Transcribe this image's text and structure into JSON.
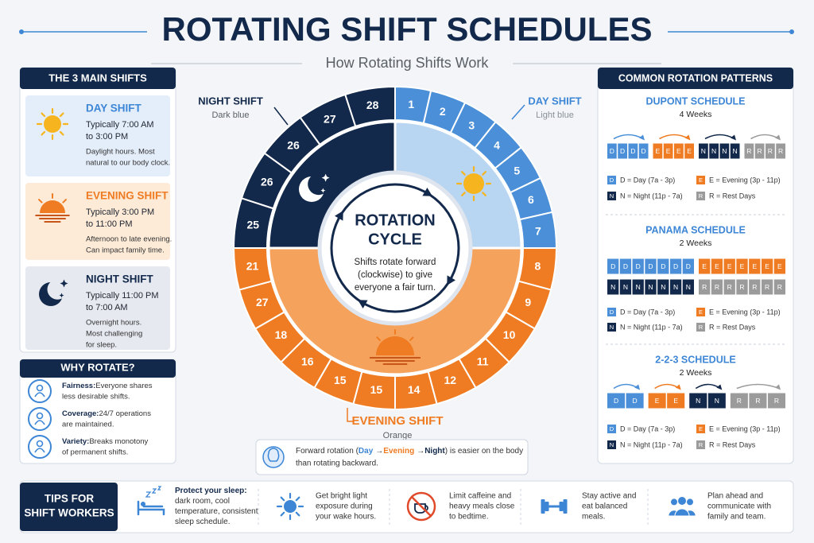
{
  "header": {
    "title": "ROTATING SHIFT SCHEDULES",
    "subtitle": "How Rotating Shifts Work"
  },
  "main_shifts": {
    "title": "THE 3 MAIN SHIFTS",
    "shifts": [
      {
        "name": "DAY SHIFT",
        "time": [
          "Typically 7:00 AM",
          "to 3:00 PM"
        ],
        "description": [
          "Daylight hours. Most",
          "natural to our body clock."
        ]
      },
      {
        "name": "EVENING SHIFT",
        "time": [
          "Typically 3:00 PM",
          "to 11:00 PM"
        ],
        "description": [
          "Afternoon to late evening.",
          "Can impact family time."
        ]
      },
      {
        "name": "NIGHT SHIFT",
        "time": [
          "Typically 11:00 PM",
          "to 7:00 AM"
        ],
        "description": [
          "Overnight hours.",
          "Most challenging",
          "for sleep."
        ]
      }
    ]
  },
  "why_rotate": {
    "title": "WHY ROTATE?",
    "reasons": [
      {
        "label": "Fairness:",
        "lines": [
          "Everyone shares",
          "less desirable shifts."
        ]
      },
      {
        "label": "Coverage:",
        "lines": [
          "24/7 operations",
          "are maintained."
        ]
      },
      {
        "label": "Variety:",
        "lines": [
          "Breaks monotony",
          "of permanent shifts."
        ]
      }
    ]
  },
  "cycle": {
    "day": {
      "label": "DAY SHIFT",
      "color_name": "Light blue",
      "numbers": [
        1,
        2,
        3,
        4,
        5,
        6,
        7
      ]
    },
    "evening": {
      "label": "EVENING SHIFT",
      "color_name": "Orange",
      "numbers": [
        8,
        9,
        10,
        11,
        12,
        14,
        15,
        15,
        16,
        18,
        27,
        21
      ]
    },
    "night": {
      "label": "NIGHT SHIFT",
      "color_name": "Dark blue",
      "numbers": [
        25,
        26,
        26,
        27,
        28
      ]
    },
    "center": {
      "title": [
        "ROTATION",
        "CYCLE"
      ],
      "text": [
        "Shifts rotate forward",
        "(clockwise) to give",
        "everyone a fair turn."
      ]
    }
  },
  "note": {
    "before": "Forward rotation (",
    "day": "Day",
    "arrow": "→",
    "evening": "Evening",
    "night": "Night",
    "after": [
      ") is easier on the body",
      "than rotating backward."
    ]
  },
  "patterns": {
    "title": "COMMON ROTATION PATTERNS",
    "legend": [
      {
        "code": "D",
        "text": "D = Day (7a - 3p)",
        "color": "#4a8fd8"
      },
      {
        "code": "E",
        "text": "E = Evening (3p - 11p)",
        "color": "#ef7b22"
      },
      {
        "code": "N",
        "text": "N = Night (11p - 7a)",
        "color": "#13294b"
      },
      {
        "code": "R",
        "text": "R = Rest Days",
        "color": "#9b9b9b"
      }
    ],
    "schedules": [
      {
        "name": "DUPONT SCHEDULE",
        "duration": "4 Weeks",
        "rows": [
          [
            "D",
            "D",
            "D",
            "D",
            "E",
            "E",
            "E",
            "E",
            "N",
            "N",
            "N",
            "N",
            "R",
            "R",
            "R",
            "R"
          ]
        ]
      },
      {
        "name": "PANAMA SCHEDULE",
        "duration": "2 Weeks",
        "rows": [
          [
            "D",
            "D",
            "D",
            "D",
            "D",
            "D",
            "D",
            "E",
            "E",
            "E",
            "E",
            "E",
            "E",
            "E"
          ],
          [
            "N",
            "N",
            "N",
            "N",
            "N",
            "N",
            "N",
            "R",
            "R",
            "R",
            "R",
            "R",
            "R",
            "R"
          ]
        ]
      },
      {
        "name": "2-2-3 SCHEDULE",
        "duration": "2 Weeks",
        "rows": [
          [
            "D",
            "D",
            "E",
            "E",
            "N",
            "N",
            "R",
            "R",
            "R"
          ]
        ]
      }
    ]
  },
  "tips": {
    "title": [
      "TIPS FOR",
      "SHIFT WORKERS"
    ],
    "items": [
      {
        "heading": "Protect your sleep:",
        "lines": [
          "dark room, cool",
          "temperature, consistent",
          "sleep schedule."
        ]
      },
      {
        "lines": [
          "Get bright light",
          "exposure during",
          "your wake hours."
        ]
      },
      {
        "lines": [
          "Limit caffeine and",
          "heavy meals close",
          "to bedtime."
        ]
      },
      {
        "lines": [
          "Stay active and",
          "eat balanced",
          "meals."
        ]
      },
      {
        "lines": [
          "Plan ahead and",
          "communicate with",
          "family and team."
        ]
      }
    ]
  }
}
